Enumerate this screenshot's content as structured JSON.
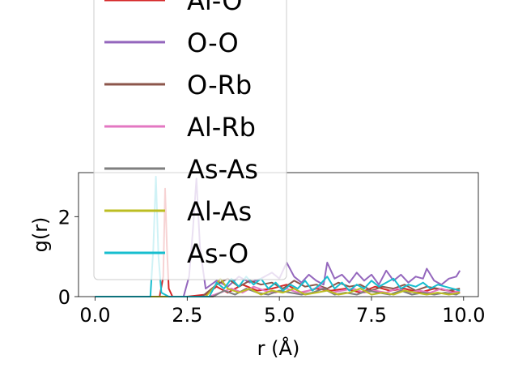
{
  "chart_data": {
    "type": "line",
    "xlabel": "r (Å)",
    "ylabel": "g(r)",
    "xlim": [
      -0.45,
      10.4
    ],
    "ylim": [
      0,
      3.1
    ],
    "xticks": [
      0.0,
      2.5,
      5.0,
      7.5,
      10.0
    ],
    "xtick_labels": [
      "0.0",
      "2.5",
      "5.0",
      "7.5",
      "10.0"
    ],
    "yticks": [
      0,
      2
    ],
    "ytick_labels": [
      "0",
      "2"
    ],
    "grid": false,
    "legend_position": "upper-left, overlapping the plot and extending above the axes",
    "series": [
      {
        "name": "Al-O",
        "color": "#d62728",
        "x": [
          0,
          1.6,
          1.75,
          1.85,
          1.9,
          1.95,
          2.0,
          2.1,
          2.5,
          3.0,
          3.3,
          3.6,
          4.0,
          4.4,
          4.8,
          5.2,
          5.6,
          6.0,
          6.4,
          6.8,
          7.2,
          7.6,
          8.0,
          8.4,
          8.8,
          9.2,
          9.6,
          9.9
        ],
        "y": [
          0,
          0,
          0,
          0.5,
          2.7,
          1.2,
          0.2,
          0,
          0,
          0.05,
          0.25,
          0.1,
          0.3,
          0.15,
          0.2,
          0.3,
          0.1,
          0.2,
          0.15,
          0.2,
          0.1,
          0.25,
          0.15,
          0.2,
          0.1,
          0.2,
          0.15,
          0.1
        ]
      },
      {
        "name": "O-O",
        "color": "#9467bd",
        "x": [
          0,
          2.4,
          2.55,
          2.65,
          2.75,
          2.85,
          3.0,
          3.3,
          3.6,
          3.9,
          4.2,
          4.5,
          4.8,
          5.0,
          5.2,
          5.4,
          5.6,
          5.8,
          6.0,
          6.2,
          6.3,
          6.5,
          6.7,
          6.9,
          7.1,
          7.3,
          7.5,
          7.7,
          7.9,
          8.1,
          8.3,
          8.5,
          8.7,
          8.9,
          9.0,
          9.2,
          9.4,
          9.6,
          9.8,
          9.9
        ],
        "y": [
          0,
          0,
          0.5,
          1.6,
          2.95,
          1.2,
          0.2,
          0.4,
          0.25,
          0.5,
          0.35,
          0.45,
          0.6,
          0.45,
          0.85,
          0.5,
          0.35,
          0.55,
          0.4,
          0.3,
          0.85,
          0.45,
          0.55,
          0.35,
          0.6,
          0.4,
          0.55,
          0.3,
          0.65,
          0.4,
          0.55,
          0.35,
          0.5,
          0.45,
          0.7,
          0.4,
          0.3,
          0.45,
          0.5,
          0.65
        ]
      },
      {
        "name": "O-Rb",
        "color": "#8c564b",
        "x": [
          0,
          2.9,
          3.1,
          3.3,
          3.6,
          3.9,
          4.2,
          4.5,
          4.8,
          5.1,
          5.4,
          5.7,
          6.0,
          6.3,
          6.6,
          6.9,
          7.2,
          7.5,
          7.8,
          8.1,
          8.4,
          8.7,
          9.0,
          9.3,
          9.6,
          9.9
        ],
        "y": [
          0,
          0,
          0.15,
          0.3,
          0.45,
          0.25,
          0.4,
          0.3,
          0.35,
          0.2,
          0.4,
          0.25,
          0.3,
          0.2,
          0.35,
          0.25,
          0.3,
          0.15,
          0.25,
          0.2,
          0.3,
          0.15,
          0.25,
          0.2,
          0.15,
          0.2
        ]
      },
      {
        "name": "Al-Rb",
        "color": "#e377c2",
        "x": [
          0,
          3.1,
          3.4,
          3.7,
          4.0,
          4.3,
          4.6,
          4.9,
          5.2,
          5.5,
          5.8,
          6.1,
          6.4,
          6.7,
          7.0,
          7.3,
          7.6,
          7.9,
          8.2,
          8.5,
          8.8,
          9.1,
          9.4,
          9.7,
          9.9
        ],
        "y": [
          0,
          0,
          0.1,
          0.2,
          0.1,
          0.25,
          0.15,
          0.1,
          0.2,
          0.1,
          0.15,
          0.25,
          0.1,
          0.15,
          0.2,
          0.1,
          0.15,
          0.1,
          0.2,
          0.1,
          0.15,
          0.1,
          0.2,
          0.1,
          0.15
        ]
      },
      {
        "name": "As-As",
        "color": "#7f7f7f",
        "x": [
          0,
          3.2,
          3.5,
          3.8,
          4.1,
          4.4,
          4.7,
          5.0,
          5.3,
          5.6,
          5.9,
          6.2,
          6.5,
          6.8,
          7.1,
          7.4,
          7.7,
          8.0,
          8.3,
          8.6,
          8.9,
          9.2,
          9.5,
          9.8,
          9.9
        ],
        "y": [
          0,
          0,
          0.15,
          0.05,
          0.2,
          0.1,
          0.05,
          0.15,
          0.1,
          0.05,
          0.1,
          0.2,
          0.05,
          0.1,
          0.05,
          0.15,
          0.1,
          0.05,
          0.15,
          0.05,
          0.1,
          0.05,
          0.1,
          0.05,
          0.1
        ]
      },
      {
        "name": "Al-As",
        "color": "#bcbd22",
        "x": [
          0,
          3.0,
          3.2,
          3.4,
          3.6,
          3.9,
          4.2,
          4.5,
          4.8,
          5.1,
          5.4,
          5.7,
          6.0,
          6.3,
          6.6,
          6.9,
          7.2,
          7.5,
          7.8,
          8.1,
          8.4,
          8.7,
          9.0,
          9.3,
          9.6,
          9.9
        ],
        "y": [
          0,
          0,
          0.2,
          0.45,
          0.2,
          0.1,
          0.2,
          0.05,
          0.15,
          0.1,
          0.2,
          0.05,
          0.1,
          0.15,
          0.05,
          0.1,
          0.2,
          0.05,
          0.1,
          0.05,
          0.15,
          0.1,
          0.05,
          0.1,
          0.05,
          0.1
        ]
      },
      {
        "name": "As-O",
        "color": "#17becf",
        "x": [
          0,
          1.5,
          1.58,
          1.65,
          1.72,
          1.8,
          2.0,
          3.1,
          3.3,
          3.5,
          3.7,
          3.9,
          4.1,
          4.3,
          4.5,
          4.7,
          4.9,
          5.1,
          5.3,
          5.5,
          5.7,
          5.9,
          6.1,
          6.3,
          6.5,
          6.7,
          6.9,
          7.1,
          7.3,
          7.5,
          7.7,
          7.9,
          8.1,
          8.3,
          8.5,
          8.7,
          8.9,
          9.1,
          9.3,
          9.5,
          9.7,
          9.9
        ],
        "y": [
          0,
          0,
          1.2,
          3.0,
          1.0,
          0.1,
          0,
          0,
          0.35,
          0.2,
          0.45,
          0.25,
          0.5,
          0.3,
          0.45,
          0.2,
          0.35,
          0.15,
          0.3,
          0.2,
          0.4,
          0.15,
          0.3,
          0.5,
          0.2,
          0.35,
          0.15,
          0.3,
          0.2,
          0.4,
          0.25,
          0.35,
          0.45,
          0.2,
          0.3,
          0.25,
          0.35,
          0.2,
          0.3,
          0.25,
          0.2,
          0.15
        ]
      }
    ],
    "legend": {
      "entries": [
        "Al-O",
        "O-O",
        "O-Rb",
        "Al-Rb",
        "As-As",
        "Al-As",
        "As-O"
      ]
    }
  }
}
